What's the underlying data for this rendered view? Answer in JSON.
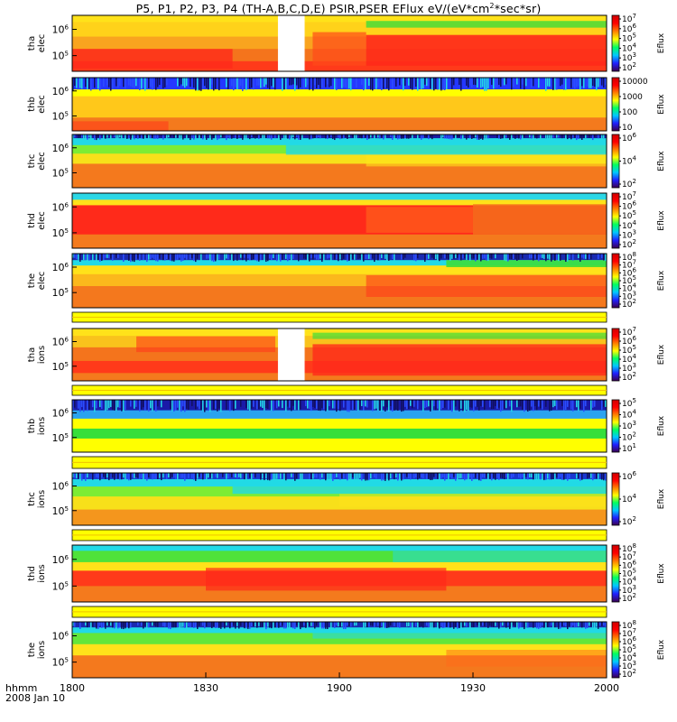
{
  "title": "P5, P1, P2, P3, P4 (TH-A,B,C,D,E) PSIR,PSER EFlux eV/(eV*cm2*sec*sr)",
  "colors": {
    "red": "#ff2a1a",
    "orange": "#f47a1d",
    "yellow": "#ffff00",
    "green": "#3dde3a",
    "cyan": "#22d9e6",
    "blue": "#2b4dff",
    "navy": "#101070",
    "colorbar_stops": [
      "#3b0050",
      "#2020ff",
      "#00c8ff",
      "#00ff60",
      "#ffff00",
      "#ff8000",
      "#ff0000",
      "#d00000"
    ]
  },
  "footer": {
    "time_label": "hhmm",
    "date_label": "2008 Jan 10"
  },
  "chart_data": {
    "type": "heatmap",
    "x_ticks": [
      "1800",
      "1830",
      "1900",
      "1930",
      "2000"
    ],
    "x_range_hhmm": [
      "1800",
      "2000"
    ],
    "panels": [
      {
        "id": "tha_elec",
        "probe": "tha",
        "species": "elec",
        "y_ticks": [
          "10^6",
          "10^5"
        ],
        "cb_label": "Eflux",
        "cb_ticks": [
          "10^7",
          "10^6",
          "10^5",
          "10^4",
          "10^3",
          "10^2"
        ],
        "data_gap": [
          0.385,
          0.435
        ]
      },
      {
        "id": "thb_elec",
        "probe": "thb",
        "species": "elec",
        "y_ticks": [
          "10^6",
          "10^5"
        ],
        "cb_label": "Eflux",
        "cb_ticks": [
          "10000",
          "1000",
          "100",
          "10"
        ]
      },
      {
        "id": "thc_elec",
        "probe": "thc",
        "species": "elec",
        "y_ticks": [
          "10^6",
          "10^5"
        ],
        "cb_label": "Eflux",
        "cb_ticks": [
          "10^6",
          "10^4",
          "10^2"
        ]
      },
      {
        "id": "thd_elec",
        "probe": "thd",
        "species": "elec",
        "y_ticks": [
          "10^6",
          "10^5"
        ],
        "cb_label": "Eflux",
        "cb_ticks": [
          "10^7",
          "10^6",
          "10^5",
          "10^4",
          "10^3",
          "10^2"
        ]
      },
      {
        "id": "the_elec",
        "probe": "the",
        "species": "elec",
        "y_ticks": [
          "10^6",
          "10^5"
        ],
        "cb_label": "Eflux",
        "cb_ticks": [
          "10^8",
          "10^7",
          "10^6",
          "10^5",
          "10^4",
          "10^3",
          "10^2"
        ]
      },
      {
        "id": "tha_ions",
        "probe": "tha",
        "species": "ions",
        "y_ticks": [
          "10^6",
          "10^5"
        ],
        "cb_label": "Eflux",
        "cb_ticks": [
          "10^7",
          "10^6",
          "10^5",
          "10^4",
          "10^3",
          "10^2"
        ],
        "data_gap": [
          0.385,
          0.435
        ]
      },
      {
        "id": "thb_ions",
        "probe": "thb",
        "species": "ions",
        "y_ticks": [
          "10^6",
          "10^5"
        ],
        "cb_label": "Eflux",
        "cb_ticks": [
          "10^5",
          "10^4",
          "10^3",
          "10^2",
          "10^1"
        ]
      },
      {
        "id": "thc_ions",
        "probe": "thc",
        "species": "ions",
        "y_ticks": [
          "10^6",
          "10^5"
        ],
        "cb_label": "Eflux",
        "cb_ticks": [
          "10^6",
          "10^4",
          "10^2"
        ]
      },
      {
        "id": "thd_ions",
        "probe": "thd",
        "species": "ions",
        "y_ticks": [
          "10^6",
          "10^5"
        ],
        "cb_label": "Eflux",
        "cb_ticks": [
          "10^8",
          "10^7",
          "10^6",
          "10^5",
          "10^4",
          "10^3",
          "10^2"
        ]
      },
      {
        "id": "the_ions",
        "probe": "the",
        "species": "ions",
        "y_ticks": [
          "10^6",
          "10^5"
        ],
        "cb_label": "Eflux",
        "cb_ticks": [
          "10^8",
          "10^7",
          "10^6",
          "10^5",
          "10^4",
          "10^3",
          "10^2"
        ]
      }
    ]
  }
}
